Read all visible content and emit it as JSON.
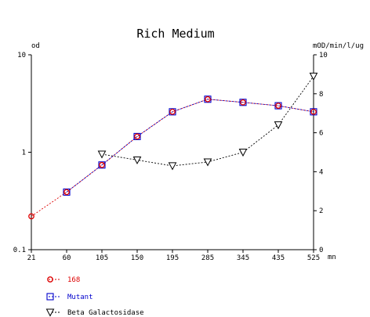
{
  "chart_data": {
    "type": "line",
    "title": "Rich Medium",
    "x": [
      21,
      60,
      105,
      150,
      195,
      285,
      345,
      435,
      525
    ],
    "x_tick_labels": [
      "21",
      "60",
      "105",
      "150",
      "195",
      "285",
      "345",
      "435",
      "525"
    ],
    "xlabel": "mn",
    "xlim": [
      21,
      525
    ],
    "y_left": {
      "label": "od",
      "scale": "log",
      "lim": [
        0.1,
        10
      ],
      "ticks": [
        0.1,
        1,
        10
      ],
      "tick_labels": [
        "0.1",
        "1",
        "10"
      ]
    },
    "y_right": {
      "label": "mOD/min/l/ug",
      "scale": "linear",
      "lim": [
        0,
        10
      ],
      "ticks": [
        0,
        2,
        4,
        6,
        8,
        10
      ],
      "tick_labels": [
        "0",
        "2",
        "4",
        "6",
        "8",
        "10"
      ]
    },
    "grid": false,
    "legend_position": "bottom-left",
    "series": [
      {
        "name": "168",
        "axis": "left",
        "marker": "circle",
        "line_style": "dashed",
        "color": "#dd0000",
        "x": [
          21,
          60,
          105,
          150,
          195,
          285,
          345,
          435,
          525
        ],
        "values": [
          0.22,
          0.39,
          0.74,
          1.45,
          2.6,
          3.5,
          3.25,
          3.0,
          2.6
        ]
      },
      {
        "name": "Mutant",
        "axis": "left",
        "marker": "square",
        "line_style": "dashed",
        "color": "#0000cc",
        "x": [
          60,
          105,
          150,
          195,
          285,
          345,
          435,
          525
        ],
        "values": [
          0.39,
          0.74,
          1.45,
          2.6,
          3.5,
          3.25,
          3.0,
          2.6
        ]
      },
      {
        "name": "Beta Galactosidase",
        "axis": "right",
        "marker": "triangle-down",
        "line_style": "dashed",
        "color": "#000000",
        "x": [
          105,
          150,
          195,
          285,
          345,
          435,
          525
        ],
        "values": [
          4.9,
          4.6,
          4.3,
          4.5,
          5.0,
          6.4,
          8.9
        ]
      }
    ]
  }
}
